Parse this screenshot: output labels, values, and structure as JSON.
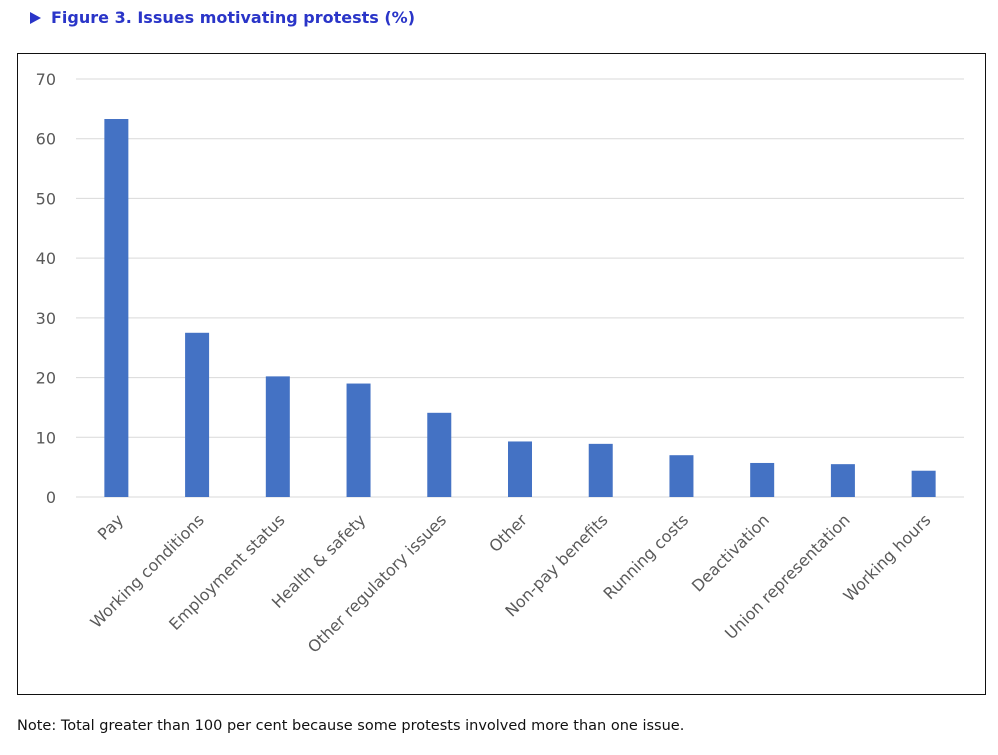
{
  "figure": {
    "title": "Figure 3. Issues motivating protests (%)",
    "note": "Note: Total greater than 100 per cent because some protests involved more than one issue."
  },
  "chart_data": {
    "type": "bar",
    "title": "",
    "xlabel": "",
    "ylabel": "",
    "categories": [
      "Pay",
      "Working conditions",
      "Employment status",
      "Health & safety",
      "Other regulatory issues",
      "Other",
      "Non-pay benefits",
      "Running costs",
      "Deactivation",
      "Union representation",
      "Working hours"
    ],
    "values": [
      63.3,
      27.5,
      20.2,
      19.0,
      14.1,
      9.3,
      8.9,
      7.0,
      5.7,
      5.5,
      4.4
    ],
    "ylim": [
      0,
      70
    ],
    "yticks": [
      0,
      10,
      20,
      30,
      40,
      50,
      60,
      70
    ],
    "grid": true,
    "legend": "none",
    "bar_color": "#4472c4",
    "grid_color": "#d9d9d9"
  }
}
